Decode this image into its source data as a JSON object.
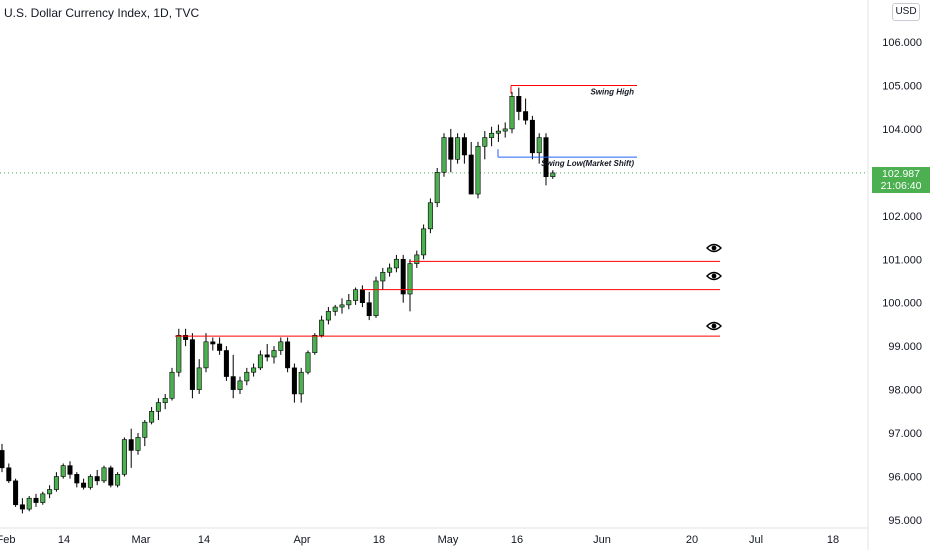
{
  "header": {
    "title": "U.S. Dollar Currency Index, 1D, TVC",
    "currency_button": "USD"
  },
  "last_price": {
    "value": "102.987",
    "countdown": "21:06:40",
    "color": "#4caf50"
  },
  "colors": {
    "up": "#4caf50",
    "down": "#000000",
    "level_line": "#ff0000",
    "swing_low_line": "#2962ff",
    "grid_dotted": "#4caf50"
  },
  "chart_data": {
    "type": "candlestick",
    "y_axis": {
      "ticks": [
        "106.000",
        "105.000",
        "104.000",
        "103.000",
        "102.000",
        "101.000",
        "100.000",
        "99.000",
        "98.000",
        "97.000",
        "96.000",
        "95.000"
      ],
      "range": [
        94.6,
        106.5
      ]
    },
    "x_axis": {
      "ticks": [
        "Feb",
        "14",
        "Mar",
        "14",
        "Apr",
        "18",
        "May",
        "16",
        "Jun",
        "20",
        "Jul",
        "18"
      ]
    },
    "annotations": [
      {
        "label": "Swing High",
        "value": 105.0,
        "color": "#ff0000"
      },
      {
        "label": "Swing Low(Market Shift)",
        "value": 103.35,
        "color": "#2962ff"
      }
    ],
    "levels": [
      {
        "value": 100.95,
        "color": "#ff0000"
      },
      {
        "value": 100.3,
        "color": "#ff0000"
      },
      {
        "value": 99.23,
        "color": "#ff0000"
      }
    ],
    "candles": [
      [
        96.6,
        96.75,
        96.1,
        96.2
      ],
      [
        96.2,
        96.3,
        95.85,
        95.9
      ],
      [
        95.9,
        95.95,
        95.3,
        95.35
      ],
      [
        95.35,
        95.5,
        95.15,
        95.25
      ],
      [
        95.25,
        95.55,
        95.2,
        95.5
      ],
      [
        95.5,
        95.6,
        95.3,
        95.4
      ],
      [
        95.4,
        95.65,
        95.35,
        95.6
      ],
      [
        95.6,
        95.8,
        95.5,
        95.7
      ],
      [
        95.7,
        96.1,
        95.65,
        96.0
      ],
      [
        96.0,
        96.3,
        95.95,
        96.25
      ],
      [
        96.25,
        96.35,
        95.95,
        96.05
      ],
      [
        96.05,
        96.1,
        95.75,
        95.85
      ],
      [
        95.85,
        95.95,
        95.7,
        95.75
      ],
      [
        95.75,
        96.05,
        95.7,
        96.0
      ],
      [
        96.0,
        96.15,
        95.8,
        95.9
      ],
      [
        95.9,
        96.25,
        95.85,
        96.2
      ],
      [
        96.2,
        96.25,
        95.75,
        95.8
      ],
      [
        95.8,
        96.1,
        95.75,
        96.05
      ],
      [
        96.05,
        96.9,
        96.0,
        96.85
      ],
      [
        96.85,
        97.1,
        96.2,
        96.6
      ],
      [
        96.6,
        97.0,
        96.5,
        96.9
      ],
      [
        96.9,
        97.3,
        96.7,
        97.25
      ],
      [
        97.25,
        97.6,
        97.2,
        97.5
      ],
      [
        97.5,
        97.8,
        97.3,
        97.7
      ],
      [
        97.7,
        97.9,
        97.55,
        97.8
      ],
      [
        97.8,
        98.5,
        97.75,
        98.4
      ],
      [
        98.4,
        99.4,
        98.3,
        99.25
      ],
      [
        99.25,
        99.4,
        99.0,
        99.15
      ],
      [
        99.15,
        99.3,
        97.8,
        98.0
      ],
      [
        98.0,
        98.7,
        97.9,
        98.5
      ],
      [
        98.5,
        99.3,
        98.4,
        99.1
      ],
      [
        99.1,
        99.2,
        98.9,
        99.05
      ],
      [
        99.05,
        99.2,
        98.8,
        98.9
      ],
      [
        98.9,
        99.0,
        98.2,
        98.3
      ],
      [
        98.3,
        98.8,
        97.8,
        98.0
      ],
      [
        98.0,
        98.3,
        97.9,
        98.2
      ],
      [
        98.2,
        98.5,
        98.1,
        98.4
      ],
      [
        98.4,
        98.6,
        98.3,
        98.5
      ],
      [
        98.5,
        98.9,
        98.45,
        98.8
      ],
      [
        98.8,
        99.05,
        98.65,
        98.75
      ],
      [
        98.75,
        99.0,
        98.6,
        98.9
      ],
      [
        98.9,
        99.2,
        98.8,
        99.1
      ],
      [
        99.1,
        99.2,
        98.4,
        98.5
      ],
      [
        98.5,
        98.6,
        97.7,
        97.9
      ],
      [
        97.9,
        98.5,
        97.7,
        98.4
      ],
      [
        98.4,
        98.9,
        98.35,
        98.85
      ],
      [
        98.85,
        99.3,
        98.8,
        99.25
      ],
      [
        99.25,
        99.7,
        99.2,
        99.6
      ],
      [
        99.6,
        99.9,
        99.5,
        99.8
      ],
      [
        99.8,
        99.95,
        99.7,
        99.9
      ],
      [
        99.9,
        100.1,
        99.75,
        99.95
      ],
      [
        99.95,
        100.2,
        99.85,
        100.05
      ],
      [
        100.05,
        100.35,
        99.95,
        100.3
      ],
      [
        100.3,
        100.4,
        99.9,
        100.0
      ],
      [
        100.0,
        100.25,
        99.6,
        99.7
      ],
      [
        99.7,
        100.6,
        99.65,
        100.5
      ],
      [
        100.5,
        100.8,
        100.3,
        100.7
      ],
      [
        100.7,
        100.9,
        100.6,
        100.8
      ],
      [
        100.8,
        101.1,
        100.7,
        101.0
      ],
      [
        101.0,
        101.1,
        100.0,
        100.2
      ],
      [
        100.2,
        101.0,
        99.8,
        100.9
      ],
      [
        100.9,
        101.2,
        100.8,
        101.1
      ],
      [
        101.1,
        101.8,
        101.0,
        101.7
      ],
      [
        101.7,
        102.4,
        101.6,
        102.3
      ],
      [
        102.3,
        103.1,
        102.2,
        103.0
      ],
      [
        103.0,
        103.9,
        102.9,
        103.8
      ],
      [
        103.8,
        104.0,
        103.0,
        103.3
      ],
      [
        103.3,
        103.9,
        103.2,
        103.8
      ],
      [
        103.8,
        103.9,
        103.2,
        103.4
      ],
      [
        103.4,
        103.7,
        102.5,
        102.5
      ],
      [
        102.5,
        103.7,
        102.4,
        103.6
      ],
      [
        103.6,
        103.95,
        103.3,
        103.8
      ],
      [
        103.8,
        104.05,
        103.6,
        103.9
      ],
      [
        103.9,
        104.1,
        103.7,
        103.95
      ],
      [
        103.95,
        104.15,
        103.8,
        104.0
      ],
      [
        104.0,
        104.85,
        103.9,
        104.75
      ],
      [
        104.75,
        104.95,
        104.2,
        104.4
      ],
      [
        104.4,
        104.7,
        104.1,
        104.2
      ],
      [
        104.2,
        104.3,
        103.3,
        103.45
      ],
      [
        103.45,
        103.9,
        103.2,
        103.8
      ],
      [
        103.8,
        103.9,
        102.7,
        102.9
      ],
      [
        102.9,
        103.05,
        102.85,
        102.987
      ]
    ]
  }
}
